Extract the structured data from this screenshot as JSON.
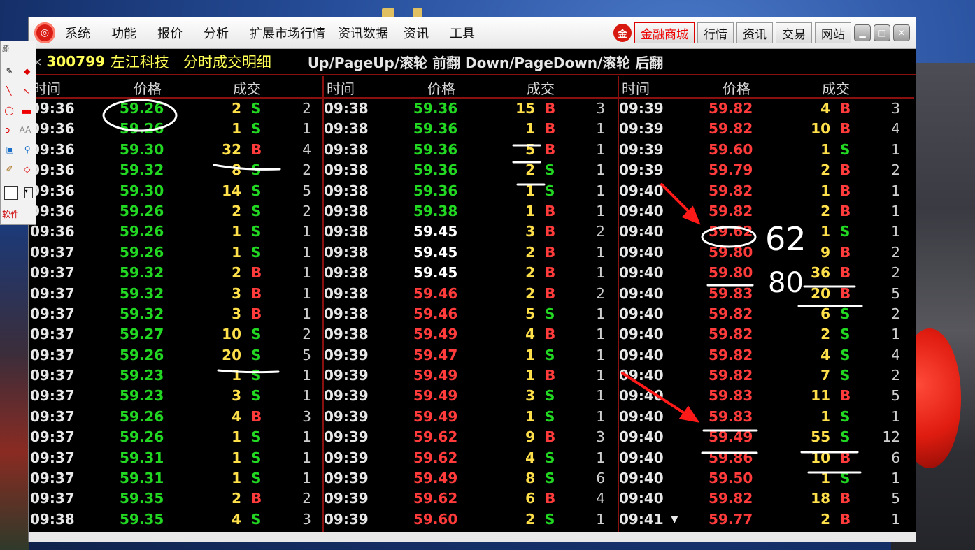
{
  "menu": {
    "items": [
      "系统",
      "功能",
      "报价",
      "分析",
      "扩展市场行情",
      "资讯数据",
      "资讯",
      "工具"
    ],
    "right_buttons": [
      "金融商城",
      "行情",
      "资讯",
      "交易",
      "网站"
    ]
  },
  "title": {
    "code": "300799",
    "name": "左江科技",
    "panel_title": "分时成交明细",
    "hint": "Up/PageUp/滚轮 前翻 Down/PageDown/滚轮 后翻"
  },
  "columns": {
    "time": "时间",
    "price": "价格",
    "volume": "成交"
  },
  "toolbox": {
    "label": "软件",
    "header": "膝"
  },
  "annotations": {
    "note1": "62",
    "note2": "80"
  },
  "panels": [
    {
      "rows": [
        {
          "time": "09:36",
          "price": "59.26",
          "pc": "g",
          "vol": "2",
          "flag": "S",
          "cnt": "2"
        },
        {
          "time": "09:36",
          "price": "59.26",
          "pc": "g",
          "vol": "1",
          "flag": "S",
          "cnt": "1"
        },
        {
          "time": "09:36",
          "price": "59.30",
          "pc": "g",
          "vol": "32",
          "flag": "B",
          "cnt": "4"
        },
        {
          "time": "09:36",
          "price": "59.32",
          "pc": "g",
          "vol": "8",
          "flag": "S",
          "cnt": "2"
        },
        {
          "time": "09:36",
          "price": "59.30",
          "pc": "g",
          "vol": "14",
          "flag": "S",
          "cnt": "5"
        },
        {
          "time": "09:36",
          "price": "59.26",
          "pc": "g",
          "vol": "2",
          "flag": "S",
          "cnt": "2"
        },
        {
          "time": "09:36",
          "price": "59.26",
          "pc": "g",
          "vol": "1",
          "flag": "S",
          "cnt": "1"
        },
        {
          "time": "09:37",
          "price": "59.26",
          "pc": "g",
          "vol": "1",
          "flag": "S",
          "cnt": "1"
        },
        {
          "time": "09:37",
          "price": "59.32",
          "pc": "g",
          "vol": "2",
          "flag": "B",
          "cnt": "1"
        },
        {
          "time": "09:37",
          "price": "59.32",
          "pc": "g",
          "vol": "3",
          "flag": "B",
          "cnt": "1"
        },
        {
          "time": "09:37",
          "price": "59.32",
          "pc": "g",
          "vol": "3",
          "flag": "B",
          "cnt": "1"
        },
        {
          "time": "09:37",
          "price": "59.27",
          "pc": "g",
          "vol": "10",
          "flag": "S",
          "cnt": "2"
        },
        {
          "time": "09:37",
          "price": "59.26",
          "pc": "g",
          "vol": "20",
          "flag": "S",
          "cnt": "5"
        },
        {
          "time": "09:37",
          "price": "59.23",
          "pc": "g",
          "vol": "1",
          "flag": "S",
          "cnt": "1"
        },
        {
          "time": "09:37",
          "price": "59.23",
          "pc": "g",
          "vol": "3",
          "flag": "S",
          "cnt": "1"
        },
        {
          "time": "09:37",
          "price": "59.26",
          "pc": "g",
          "vol": "4",
          "flag": "B",
          "cnt": "3"
        },
        {
          "time": "09:37",
          "price": "59.26",
          "pc": "g",
          "vol": "1",
          "flag": "S",
          "cnt": "1"
        },
        {
          "time": "09:37",
          "price": "59.31",
          "pc": "g",
          "vol": "1",
          "flag": "S",
          "cnt": "1"
        },
        {
          "time": "09:37",
          "price": "59.31",
          "pc": "g",
          "vol": "1",
          "flag": "S",
          "cnt": "1"
        },
        {
          "time": "09:37",
          "price": "59.35",
          "pc": "g",
          "vol": "2",
          "flag": "B",
          "cnt": "2"
        },
        {
          "time": "09:38",
          "price": "59.35",
          "pc": "g",
          "vol": "4",
          "flag": "S",
          "cnt": "3"
        }
      ]
    },
    {
      "rows": [
        {
          "time": "09:38",
          "price": "59.36",
          "pc": "g",
          "vol": "15",
          "flag": "B",
          "cnt": "3"
        },
        {
          "time": "09:38",
          "price": "59.36",
          "pc": "g",
          "vol": "1",
          "flag": "B",
          "cnt": "1"
        },
        {
          "time": "09:38",
          "price": "59.36",
          "pc": "g",
          "vol": "5",
          "flag": "B",
          "cnt": "1"
        },
        {
          "time": "09:38",
          "price": "59.36",
          "pc": "g",
          "vol": "2",
          "flag": "S",
          "cnt": "1"
        },
        {
          "time": "09:38",
          "price": "59.36",
          "pc": "g",
          "vol": "1",
          "flag": "S",
          "cnt": "1"
        },
        {
          "time": "09:38",
          "price": "59.38",
          "pc": "g",
          "vol": "1",
          "flag": "B",
          "cnt": "1"
        },
        {
          "time": "09:38",
          "price": "59.45",
          "pc": "w",
          "vol": "3",
          "flag": "B",
          "cnt": "2"
        },
        {
          "time": "09:38",
          "price": "59.45",
          "pc": "w",
          "vol": "2",
          "flag": "B",
          "cnt": "1"
        },
        {
          "time": "09:38",
          "price": "59.45",
          "pc": "w",
          "vol": "2",
          "flag": "B",
          "cnt": "1"
        },
        {
          "time": "09:38",
          "price": "59.46",
          "pc": "r",
          "vol": "2",
          "flag": "B",
          "cnt": "2"
        },
        {
          "time": "09:38",
          "price": "59.46",
          "pc": "r",
          "vol": "5",
          "flag": "S",
          "cnt": "1"
        },
        {
          "time": "09:38",
          "price": "59.49",
          "pc": "r",
          "vol": "4",
          "flag": "B",
          "cnt": "1"
        },
        {
          "time": "09:39",
          "price": "59.47",
          "pc": "r",
          "vol": "1",
          "flag": "S",
          "cnt": "1"
        },
        {
          "time": "09:39",
          "price": "59.49",
          "pc": "r",
          "vol": "1",
          "flag": "B",
          "cnt": "1"
        },
        {
          "time": "09:39",
          "price": "59.49",
          "pc": "r",
          "vol": "3",
          "flag": "S",
          "cnt": "1"
        },
        {
          "time": "09:39",
          "price": "59.49",
          "pc": "r",
          "vol": "1",
          "flag": "S",
          "cnt": "1"
        },
        {
          "time": "09:39",
          "price": "59.62",
          "pc": "r",
          "vol": "9",
          "flag": "B",
          "cnt": "3"
        },
        {
          "time": "09:39",
          "price": "59.62",
          "pc": "r",
          "vol": "4",
          "flag": "S",
          "cnt": "1"
        },
        {
          "time": "09:39",
          "price": "59.49",
          "pc": "r",
          "vol": "8",
          "flag": "S",
          "cnt": "6"
        },
        {
          "time": "09:39",
          "price": "59.62",
          "pc": "r",
          "vol": "6",
          "flag": "B",
          "cnt": "4"
        },
        {
          "time": "09:39",
          "price": "59.60",
          "pc": "r",
          "vol": "2",
          "flag": "S",
          "cnt": "1"
        }
      ]
    },
    {
      "rows": [
        {
          "time": "09:39",
          "price": "59.82",
          "pc": "r",
          "vol": "4",
          "flag": "B",
          "cnt": "3"
        },
        {
          "time": "09:39",
          "price": "59.82",
          "pc": "r",
          "vol": "10",
          "flag": "B",
          "cnt": "4"
        },
        {
          "time": "09:39",
          "price": "59.60",
          "pc": "r",
          "vol": "1",
          "flag": "S",
          "cnt": "1"
        },
        {
          "time": "09:39",
          "price": "59.79",
          "pc": "r",
          "vol": "2",
          "flag": "B",
          "cnt": "2"
        },
        {
          "time": "09:40",
          "price": "59.82",
          "pc": "r",
          "vol": "1",
          "flag": "B",
          "cnt": "1"
        },
        {
          "time": "09:40",
          "price": "59.82",
          "pc": "r",
          "vol": "2",
          "flag": "B",
          "cnt": "1"
        },
        {
          "time": "09:40",
          "price": "59.62",
          "pc": "r",
          "vol": "1",
          "flag": "S",
          "cnt": "1"
        },
        {
          "time": "09:40",
          "price": "59.80",
          "pc": "r",
          "vol": "9",
          "flag": "B",
          "cnt": "2"
        },
        {
          "time": "09:40",
          "price": "59.80",
          "pc": "r",
          "vol": "36",
          "flag": "B",
          "cnt": "2"
        },
        {
          "time": "09:40",
          "price": "59.83",
          "pc": "r",
          "vol": "20",
          "flag": "B",
          "cnt": "5"
        },
        {
          "time": "09:40",
          "price": "59.82",
          "pc": "r",
          "vol": "6",
          "flag": "S",
          "cnt": "2"
        },
        {
          "time": "09:40",
          "price": "59.82",
          "pc": "r",
          "vol": "2",
          "flag": "S",
          "cnt": "1"
        },
        {
          "time": "09:40",
          "price": "59.82",
          "pc": "r",
          "vol": "4",
          "flag": "S",
          "cnt": "4"
        },
        {
          "time": "09:40",
          "price": "59.82",
          "pc": "r",
          "vol": "7",
          "flag": "S",
          "cnt": "2"
        },
        {
          "time": "09:40",
          "price": "59.83",
          "pc": "r",
          "vol": "11",
          "flag": "B",
          "cnt": "5"
        },
        {
          "time": "09:40",
          "price": "59.83",
          "pc": "r",
          "vol": "1",
          "flag": "S",
          "cnt": "1"
        },
        {
          "time": "09:40",
          "price": "59.49",
          "pc": "r",
          "vol": "55",
          "flag": "S",
          "cnt": "12"
        },
        {
          "time": "09:40",
          "price": "59.86",
          "pc": "r",
          "vol": "10",
          "flag": "B",
          "cnt": "6"
        },
        {
          "time": "09:40",
          "price": "59.50",
          "pc": "r",
          "vol": "1",
          "flag": "S",
          "cnt": "1"
        },
        {
          "time": "09:40",
          "price": "59.82",
          "pc": "r",
          "vol": "18",
          "flag": "B",
          "cnt": "5"
        },
        {
          "time": "09:41",
          "price": "59.77",
          "pc": "r",
          "vol": "2",
          "flag": "B",
          "cnt": "1"
        }
      ]
    }
  ]
}
